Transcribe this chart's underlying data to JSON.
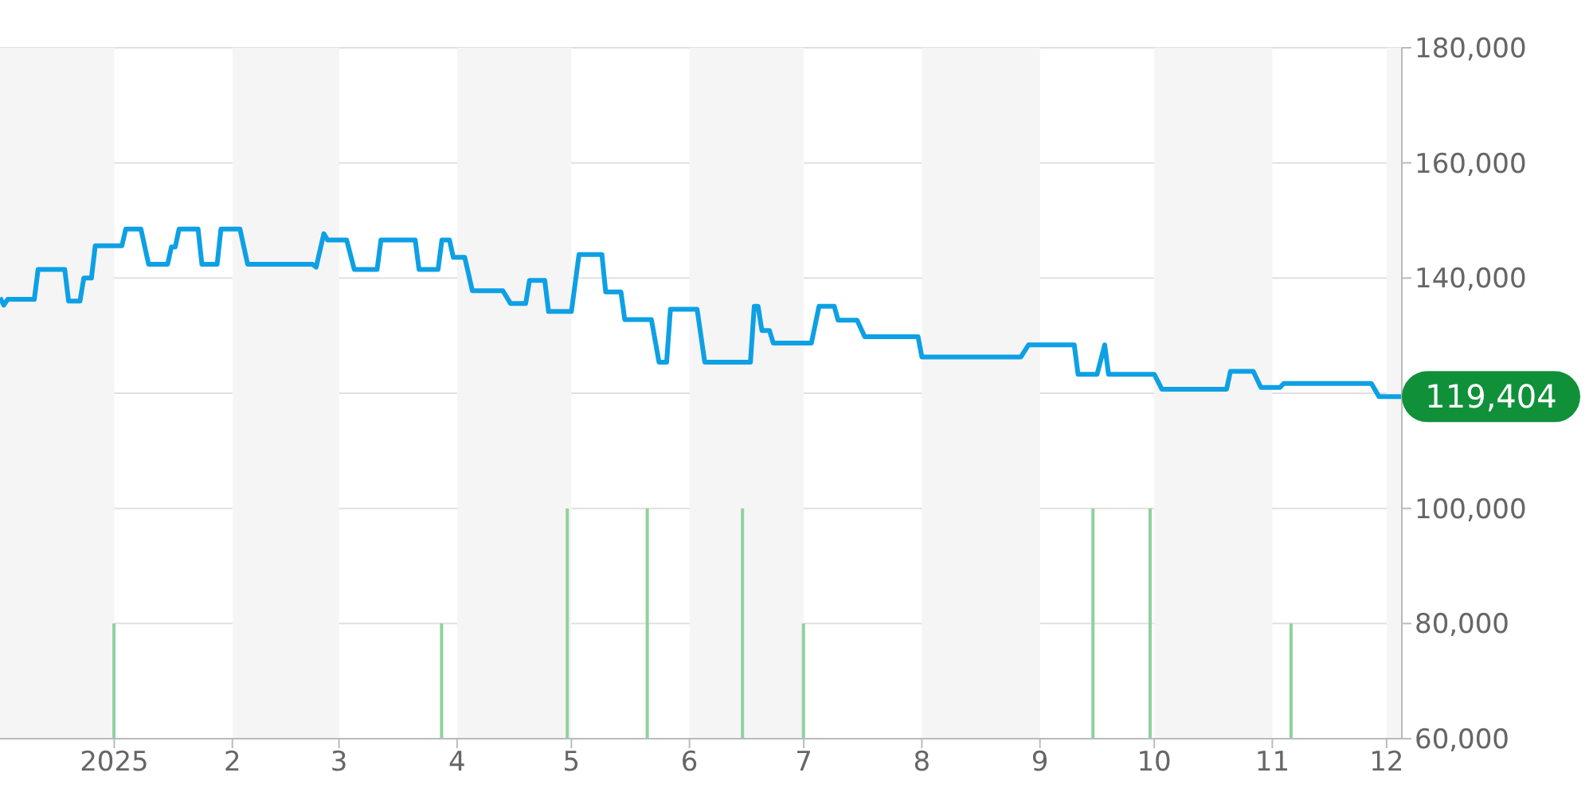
{
  "chart_data": {
    "type": "line",
    "xlim": [
      "2024-12-02",
      "2025-12-05"
    ],
    "xticks": [
      {
        "value": "2025-01-01",
        "label": "2025"
      },
      {
        "value": "2025-02-01",
        "label": "2"
      },
      {
        "value": "2025-03-01",
        "label": "3"
      },
      {
        "value": "2025-04-01",
        "label": "4"
      },
      {
        "value": "2025-05-01",
        "label": "5"
      },
      {
        "value": "2025-06-01",
        "label": "6"
      },
      {
        "value": "2025-07-01",
        "label": "7"
      },
      {
        "value": "2025-08-01",
        "label": "8"
      },
      {
        "value": "2025-09-01",
        "label": "9"
      },
      {
        "value": "2025-10-01",
        "label": "10"
      },
      {
        "value": "2025-11-01",
        "label": "11"
      },
      {
        "value": "2025-12-01",
        "label": "12"
      }
    ],
    "ylim": [
      60000,
      180000
    ],
    "yticks": [
      {
        "value": 60000,
        "label": "60,000"
      },
      {
        "value": 80000,
        "label": "80,000"
      },
      {
        "value": 100000,
        "label": "100,000"
      },
      {
        "value": 120000,
        "label": null
      },
      {
        "value": 140000,
        "label": "140,000"
      },
      {
        "value": 160000,
        "label": "160,000"
      },
      {
        "value": 180000,
        "label": "180,000"
      }
    ],
    "grid": "y",
    "series": [
      {
        "color": "#0ea0e4",
        "x": [
          "2024-12-02",
          "2024-12-03",
          "2024-12-04",
          "2024-12-11",
          "2024-12-12",
          "2024-12-19",
          "2024-12-20",
          "2024-12-23",
          "2024-12-24",
          "2024-12-26",
          "2024-12-27",
          "2025-01-03",
          "2025-01-04",
          "2025-01-08",
          "2025-01-10",
          "2025-01-15",
          "2025-01-16",
          "2025-01-17",
          "2025-01-18",
          "2025-01-23",
          "2025-01-24",
          "2025-01-28",
          "2025-01-29",
          "2025-02-03",
          "2025-02-05",
          "2025-02-22",
          "2025-02-23",
          "2025-02-25",
          "2025-02-26",
          "2025-03-03",
          "2025-03-05",
          "2025-03-11",
          "2025-03-12",
          "2025-03-21",
          "2025-03-22",
          "2025-03-27",
          "2025-03-28",
          "2025-03-30",
          "2025-03-31",
          "2025-04-03",
          "2025-04-05",
          "2025-04-13",
          "2025-04-15",
          "2025-04-19",
          "2025-04-20",
          "2025-04-24",
          "2025-04-25",
          "2025-05-01",
          "2025-05-03",
          "2025-05-09",
          "2025-05-10",
          "2025-05-14",
          "2025-05-15",
          "2025-05-22",
          "2025-05-24",
          "2025-05-26",
          "2025-05-27",
          "2025-06-03",
          "2025-06-05",
          "2025-06-17",
          "2025-06-18",
          "2025-06-19",
          "2025-06-20",
          "2025-06-22",
          "2025-06-23",
          "2025-07-03",
          "2025-07-05",
          "2025-07-09",
          "2025-07-10",
          "2025-07-15",
          "2025-07-17",
          "2025-07-31",
          "2025-08-01",
          "2025-08-27",
          "2025-08-29",
          "2025-09-10",
          "2025-09-11",
          "2025-09-16",
          "2025-09-18",
          "2025-09-19",
          "2025-10-01",
          "2025-10-03",
          "2025-10-20",
          "2025-10-21",
          "2025-10-27",
          "2025-10-29",
          "2025-11-03",
          "2025-11-04",
          "2025-11-27",
          "2025-11-29",
          "2025-12-05"
        ],
        "values": [
          136600,
          135300,
          136300,
          136300,
          141500,
          141500,
          136000,
          136000,
          140000,
          140000,
          145600,
          145600,
          148500,
          148500,
          142400,
          142400,
          145400,
          145400,
          148500,
          148500,
          142400,
          142400,
          148500,
          148500,
          142400,
          142400,
          141900,
          147700,
          146600,
          146600,
          141500,
          141500,
          146600,
          146600,
          141500,
          141500,
          146600,
          146600,
          143600,
          143600,
          137800,
          137800,
          135600,
          135600,
          139600,
          139600,
          134200,
          134200,
          144100,
          144100,
          137600,
          137600,
          132800,
          132800,
          125400,
          125400,
          134600,
          134600,
          125400,
          125400,
          135100,
          135100,
          130900,
          130900,
          128700,
          128700,
          135100,
          135100,
          132700,
          132700,
          129800,
          129800,
          126300,
          126300,
          128400,
          128400,
          123300,
          123300,
          128400,
          123300,
          123300,
          120700,
          120700,
          123800,
          123800,
          121000,
          121000,
          121700,
          121700,
          119404,
          119404
        ]
      },
      {
        "type": "bar",
        "color": "#8fd19e",
        "x": [
          "2025-01-01",
          "2025-03-28",
          "2025-04-30",
          "2025-05-21",
          "2025-06-15",
          "2025-07-01",
          "2025-09-15",
          "2025-09-30",
          "2025-11-06"
        ],
        "values": [
          80000,
          80000,
          100000,
          100000,
          100000,
          80000,
          100000,
          100000,
          80000
        ]
      }
    ],
    "bands": [
      {
        "axis": "x",
        "from": "2024-12-02",
        "to": "2025-01-01",
        "color": "#f5f5f5"
      },
      {
        "axis": "x",
        "from": "2025-02-01",
        "to": "2025-03-01",
        "color": "#f5f5f5"
      },
      {
        "axis": "x",
        "from": "2025-04-01",
        "to": "2025-05-01",
        "color": "#f5f5f5"
      },
      {
        "axis": "x",
        "from": "2025-06-01",
        "to": "2025-07-01",
        "color": "#f5f5f5"
      },
      {
        "axis": "x",
        "from": "2025-08-01",
        "to": "2025-09-01",
        "color": "#f5f5f5"
      },
      {
        "axis": "x",
        "from": "2025-10-01",
        "to": "2025-11-01",
        "color": "#f5f5f5"
      },
      {
        "axis": "x",
        "from": "2025-12-01",
        "to": "2025-12-05",
        "color": "#f5f5f5"
      }
    ],
    "annotations": [
      {
        "text": "119,404",
        "x": "2025-12-05",
        "y": 119404
      }
    ]
  }
}
